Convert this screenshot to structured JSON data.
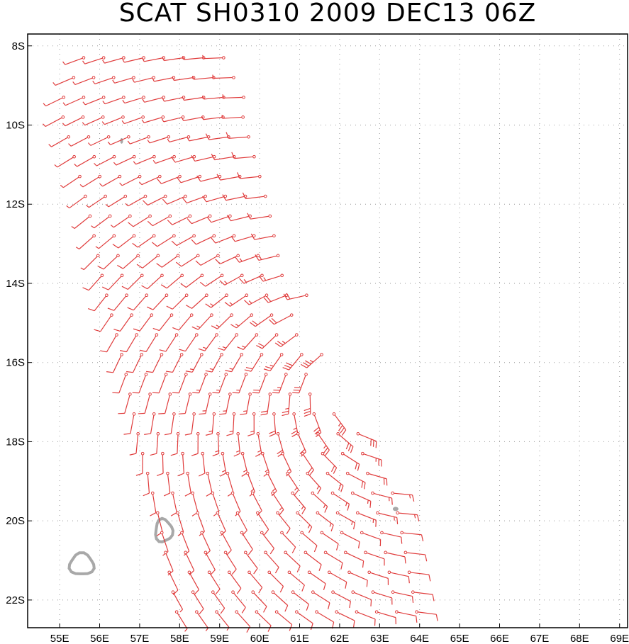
{
  "chart_data": {
    "type": "wind-barb-map",
    "title": "SCAT SH0310 2009 DEC13 06Z",
    "x_axis": {
      "range_deg_east": [
        54.2,
        69.2
      ],
      "tick_values": [
        55,
        56,
        57,
        58,
        59,
        60,
        61,
        62,
        63,
        64,
        65,
        66,
        67,
        68,
        69
      ],
      "tick_labels": [
        "55E",
        "56E",
        "57E",
        "58E",
        "59E",
        "60E",
        "61E",
        "62E",
        "63E",
        "64E",
        "65E",
        "66E",
        "67E",
        "68E",
        "69E"
      ]
    },
    "y_axis": {
      "range_deg_south": [
        7.7,
        22.7
      ],
      "tick_values": [
        8,
        10,
        12,
        14,
        16,
        18,
        20,
        22
      ],
      "tick_labels": [
        "8S",
        "10S",
        "12S",
        "14S",
        "16S",
        "18S",
        "20S",
        "22S"
      ]
    },
    "grid": true,
    "series": [
      {
        "name": "scatterometer wind barbs",
        "color": "#e03c3c",
        "field": {
          "type": "cyclonic",
          "center_lon": 62.5,
          "center_lat": -16.3,
          "min_speed_kt": 5,
          "max_speed_kt": 40
        }
      },
      {
        "name": "land outline",
        "color": "#a8a8a8",
        "features": [
          {
            "name": "Reunion",
            "lon": 55.55,
            "lat": -21.1
          },
          {
            "name": "Mauritius",
            "lon": 57.6,
            "lat": -20.25
          },
          {
            "name": "islet",
            "lon": 63.4,
            "lat": -19.7
          },
          {
            "name": "islet",
            "lon": 56.55,
            "lat": -10.4
          }
        ]
      }
    ]
  },
  "colors": {
    "barb": "#e03c3c",
    "land": "#a8a8a8",
    "grid": "#9a9a9a"
  }
}
